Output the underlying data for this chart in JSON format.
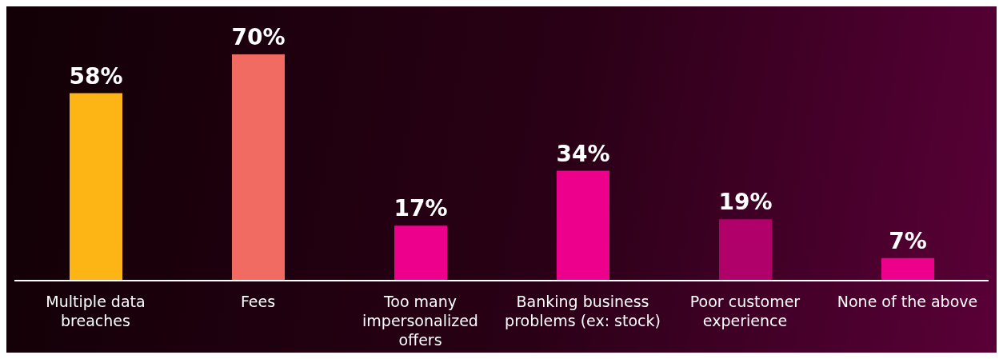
{
  "chart_data": {
    "type": "bar",
    "categories": [
      "Multiple data breaches",
      "Fees",
      "Too many impersonalized offers",
      "Banking business problems (ex: stock)",
      "Poor customer experience",
      "None of the above"
    ],
    "values": [
      58,
      70,
      17,
      34,
      19,
      7
    ],
    "value_labels": [
      "58%",
      "70%",
      "17%",
      "34%",
      "19%",
      "7%"
    ],
    "colors": [
      "#fdb515",
      "#f26b63",
      "#ec008c",
      "#ec008c",
      "#b0006a",
      "#ec008c"
    ],
    "grid": false,
    "legend": false
  }
}
